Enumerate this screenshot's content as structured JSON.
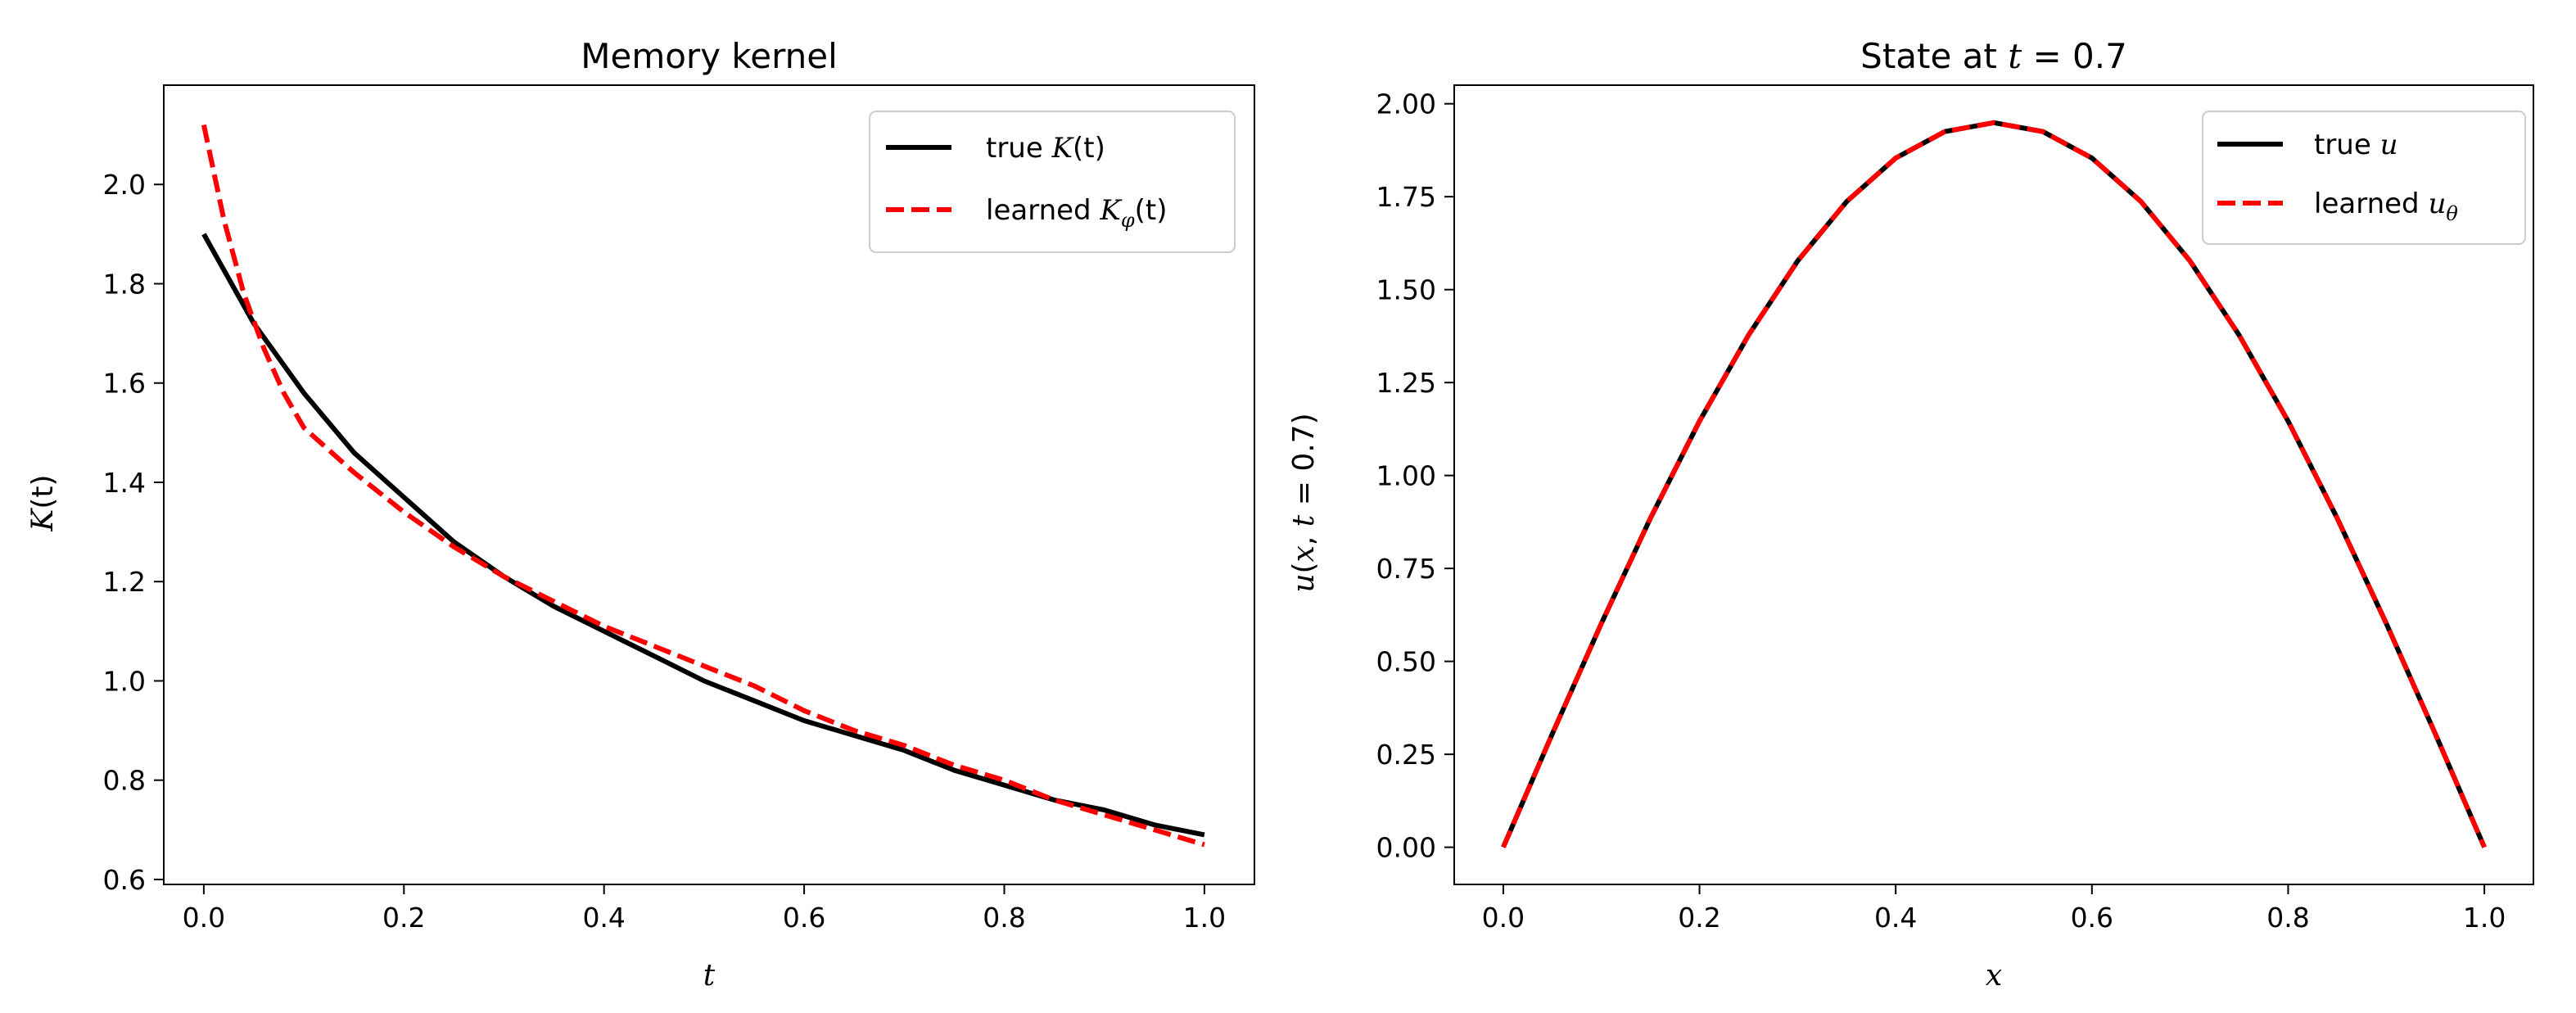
{
  "chart_data": [
    {
      "type": "line",
      "title": "Memory kernel",
      "xlabel": "t",
      "ylabel": "K(t)",
      "xlim": [
        -0.04,
        1.05
      ],
      "ylim": [
        0.59,
        2.2
      ],
      "xticks": [
        0.0,
        0.2,
        0.4,
        0.6,
        0.8,
        1.0
      ],
      "xtick_labels": [
        "0.0",
        "0.2",
        "0.4",
        "0.6",
        "0.8",
        "1.0"
      ],
      "yticks": [
        0.6,
        0.8,
        1.0,
        1.2,
        1.4,
        1.6,
        1.8,
        2.0
      ],
      "ytick_labels": [
        "0.6",
        "0.8",
        "1.0",
        "1.2",
        "1.4",
        "1.6",
        "1.8",
        "2.0"
      ],
      "grid": false,
      "legend": "top-right",
      "series": [
        {
          "name": "true K(t)",
          "color": "#000000",
          "style": "solid",
          "x": [
            0.0,
            0.05,
            0.1,
            0.15,
            0.2,
            0.25,
            0.3,
            0.35,
            0.4,
            0.45,
            0.5,
            0.55,
            0.6,
            0.65,
            0.7,
            0.75,
            0.8,
            0.85,
            0.9,
            0.95,
            1.0
          ],
          "y": [
            1.9,
            1.72,
            1.58,
            1.46,
            1.37,
            1.28,
            1.21,
            1.15,
            1.1,
            1.05,
            1.0,
            0.96,
            0.92,
            0.89,
            0.86,
            0.82,
            0.79,
            0.76,
            0.74,
            0.71,
            0.69
          ]
        },
        {
          "name": "learned Kφ(t)",
          "color": "#ff0000",
          "style": "dashed",
          "x": [
            0.0,
            0.02,
            0.04,
            0.06,
            0.08,
            0.1,
            0.15,
            0.2,
            0.25,
            0.3,
            0.35,
            0.4,
            0.45,
            0.5,
            0.55,
            0.6,
            0.65,
            0.7,
            0.75,
            0.8,
            0.85,
            0.9,
            0.95,
            1.0
          ],
          "y": [
            2.12,
            1.93,
            1.78,
            1.67,
            1.58,
            1.51,
            1.42,
            1.34,
            1.27,
            1.21,
            1.16,
            1.11,
            1.07,
            1.03,
            0.99,
            0.94,
            0.9,
            0.87,
            0.83,
            0.8,
            0.76,
            0.73,
            0.7,
            0.67
          ]
        }
      ]
    },
    {
      "type": "line",
      "title": "State at t = 0.7",
      "xlabel": "x",
      "ylabel": "u(x, t = 0.7)",
      "xlim": [
        -0.05,
        1.05
      ],
      "ylim": [
        -0.1,
        2.05
      ],
      "xticks": [
        0.0,
        0.2,
        0.4,
        0.6,
        0.8,
        1.0
      ],
      "xtick_labels": [
        "0.0",
        "0.2",
        "0.4",
        "0.6",
        "0.8",
        "1.0"
      ],
      "yticks": [
        0.0,
        0.25,
        0.5,
        0.75,
        1.0,
        1.25,
        1.5,
        1.75,
        2.0
      ],
      "ytick_labels": [
        "0.00",
        "0.25",
        "0.50",
        "0.75",
        "1.00",
        "1.25",
        "1.50",
        "1.75",
        "2.00"
      ],
      "grid": false,
      "legend": "top-right",
      "series": [
        {
          "name": "true u",
          "color": "#000000",
          "style": "solid",
          "x": [
            0.0,
            0.05,
            0.1,
            0.15,
            0.2,
            0.25,
            0.3,
            0.35,
            0.4,
            0.45,
            0.5,
            0.55,
            0.6,
            0.65,
            0.7,
            0.75,
            0.8,
            0.85,
            0.9,
            0.95,
            1.0
          ],
          "y": [
            0.0,
            0.305,
            0.602,
            0.885,
            1.146,
            1.378,
            1.577,
            1.737,
            1.854,
            1.925,
            1.949,
            1.925,
            1.854,
            1.737,
            1.577,
            1.378,
            1.146,
            0.885,
            0.602,
            0.305,
            0.0
          ]
        },
        {
          "name": "learned uθ",
          "color": "#ff0000",
          "style": "dashed",
          "x": [
            0.0,
            0.05,
            0.1,
            0.15,
            0.2,
            0.25,
            0.3,
            0.35,
            0.4,
            0.45,
            0.5,
            0.55,
            0.6,
            0.65,
            0.7,
            0.75,
            0.8,
            0.85,
            0.9,
            0.95,
            1.0
          ],
          "y": [
            0.0,
            0.305,
            0.602,
            0.885,
            1.146,
            1.378,
            1.577,
            1.737,
            1.854,
            1.925,
            1.949,
            1.925,
            1.854,
            1.737,
            1.577,
            1.378,
            1.146,
            0.885,
            0.602,
            0.305,
            0.0
          ]
        }
      ]
    }
  ],
  "panels": {
    "left": {
      "title": "Memory kernel",
      "ylabel_k": "K",
      "ylabel_rest": "(t)",
      "legend_true_prefix": "true ",
      "legend_true_var": "K",
      "legend_true_suffix": "(t)",
      "legend_learned_prefix": "learned ",
      "legend_learned_var": "K",
      "legend_learned_sub": "φ",
      "legend_learned_suffix": "(t)"
    },
    "right": {
      "title_prefix": "State at ",
      "title_var": "t",
      "title_suffix": " = 0.7",
      "ylabel_u": "u",
      "ylabel_x": "x",
      "ylabel_t": "t",
      "ylabel_rest": " = 0.7)",
      "legend_true_prefix": "true ",
      "legend_true_var": "u",
      "legend_learned_prefix": "learned ",
      "legend_learned_var": "u",
      "legend_learned_sub": "θ"
    }
  }
}
